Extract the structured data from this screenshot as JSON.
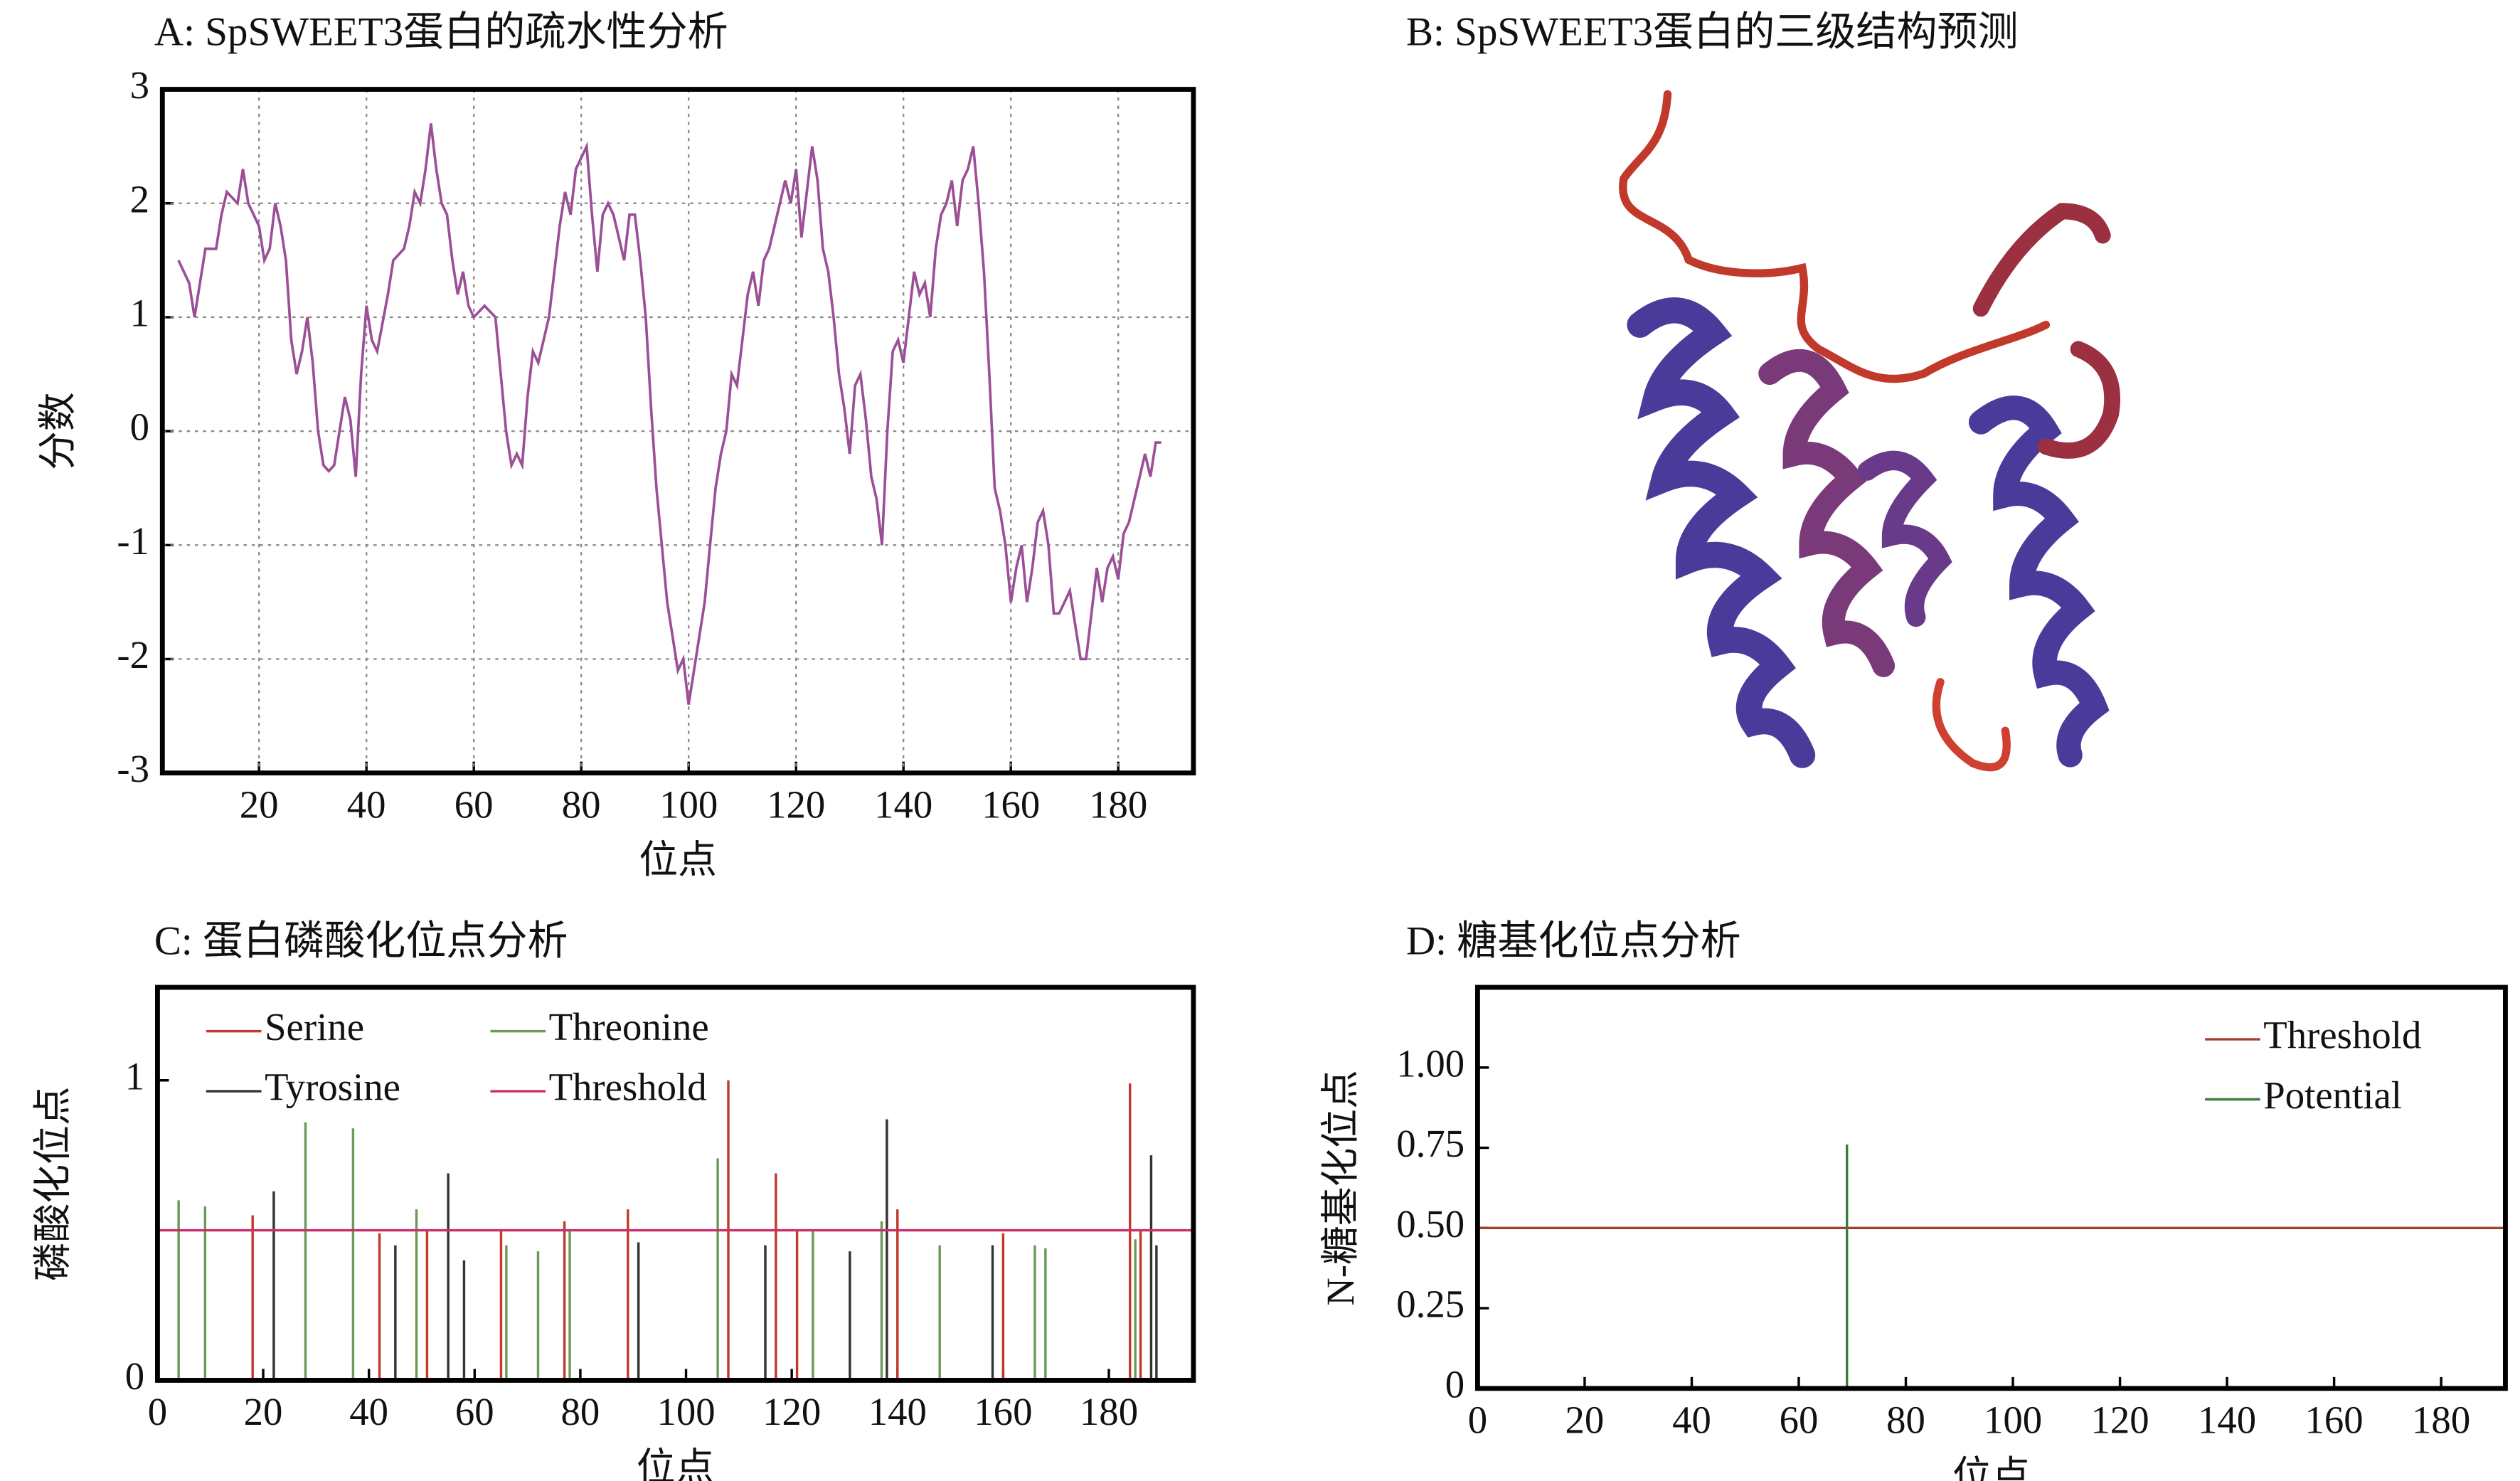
{
  "chart_data": [
    {
      "type": "line",
      "title": "A: SpSWEET3蛋白的疏水性分析",
      "xlabel": "位点",
      "ylabel": "分数",
      "color": "#9b4f96",
      "grid": true,
      "x": [
        5,
        7,
        8,
        10,
        12,
        13,
        14,
        16,
        17,
        18,
        19,
        20,
        21,
        22,
        23,
        24,
        25,
        26,
        27,
        28,
        29,
        30,
        31,
        32,
        33,
        34,
        35,
        36,
        37,
        38,
        39,
        40,
        41,
        42,
        44,
        45,
        47,
        48,
        49,
        50,
        51,
        52,
        53,
        54,
        55,
        56,
        57,
        58,
        59,
        60,
        62,
        64,
        65,
        66,
        67,
        68,
        69,
        70,
        71,
        72,
        74,
        75,
        76,
        77,
        78,
        79,
        80,
        81,
        82,
        83,
        84,
        85,
        86,
        87,
        88,
        89,
        90,
        91,
        92,
        93,
        94,
        95,
        96,
        97,
        98,
        99,
        100,
        101,
        102,
        103,
        104,
        105,
        106,
        107,
        108,
        109,
        110,
        111,
        112,
        113,
        114,
        115,
        116,
        117,
        118,
        119,
        120,
        121,
        122,
        123,
        124,
        125,
        126,
        127,
        128,
        129,
        130,
        131,
        132,
        133,
        134,
        135,
        136,
        137,
        138,
        139,
        140,
        141,
        142,
        143,
        144,
        145,
        146,
        147,
        148,
        149,
        150,
        151,
        152,
        153,
        154,
        155,
        156,
        157,
        158,
        159,
        160,
        161,
        162,
        163,
        164,
        165,
        166,
        167,
        168,
        169,
        170,
        171,
        172,
        173,
        174,
        175,
        176,
        177,
        178,
        179,
        180,
        181,
        182,
        183,
        184,
        185,
        186,
        187,
        188
      ],
      "values": [
        1.5,
        1.3,
        1.0,
        1.6,
        1.6,
        1.9,
        2.1,
        2.0,
        2.3,
        2.0,
        1.9,
        1.8,
        1.5,
        1.6,
        2.0,
        1.8,
        1.5,
        0.8,
        0.5,
        0.7,
        1.0,
        0.6,
        0.0,
        -0.3,
        -0.35,
        -0.3,
        0.0,
        0.3,
        0.1,
        -0.4,
        0.5,
        1.1,
        0.8,
        0.7,
        1.2,
        1.5,
        1.6,
        1.8,
        2.1,
        2.0,
        2.3,
        2.7,
        2.3,
        2.0,
        1.9,
        1.5,
        1.2,
        1.4,
        1.1,
        1.0,
        1.1,
        1.0,
        0.5,
        0.0,
        -0.3,
        -0.2,
        -0.3,
        0.3,
        0.7,
        0.6,
        1.0,
        1.4,
        1.8,
        2.1,
        1.9,
        2.3,
        2.4,
        2.5,
        1.9,
        1.4,
        1.9,
        2.0,
        1.9,
        1.7,
        1.5,
        1.9,
        1.9,
        1.5,
        1.0,
        0.2,
        -0.5,
        -1.0,
        -1.5,
        -1.8,
        -2.1,
        -2.0,
        -2.4,
        -2.1,
        -1.8,
        -1.5,
        -1.0,
        -0.5,
        -0.2,
        0.0,
        0.5,
        0.4,
        0.8,
        1.2,
        1.4,
        1.1,
        1.5,
        1.6,
        1.8,
        2.0,
        2.2,
        2.0,
        2.3,
        1.7,
        2.1,
        2.5,
        2.2,
        1.6,
        1.4,
        1.0,
        0.5,
        0.2,
        -0.2,
        0.4,
        0.5,
        0.1,
        -0.4,
        -0.6,
        -1.0,
        0.0,
        0.7,
        0.8,
        0.6,
        1.0,
        1.4,
        1.2,
        1.3,
        1.0,
        1.6,
        1.9,
        2.0,
        2.2,
        1.8,
        2.2,
        2.3,
        2.5,
        2.0,
        1.4,
        0.5,
        -0.5,
        -0.7,
        -1.0,
        -1.5,
        -1.2,
        -1.0,
        -1.5,
        -1.2,
        -0.8,
        -0.7,
        -1.0,
        -1.6,
        -1.6,
        -1.5,
        -1.4,
        -1.7,
        -2.0,
        -2.0,
        -1.6,
        -1.2,
        -1.5,
        -1.2,
        -1.1,
        -1.3,
        -0.9,
        -0.8,
        -0.6,
        -0.4,
        -0.2,
        -0.4,
        -0.1,
        -0.1
      ],
      "xlim": [
        2,
        194
      ],
      "ylim": [
        -3,
        3
      ],
      "xticks": [
        20,
        40,
        60,
        80,
        100,
        120,
        140,
        160,
        180
      ],
      "yticks": [
        -3,
        -2,
        -1,
        0,
        1,
        2,
        3
      ]
    },
    {
      "type": "stem",
      "title": "C: 蛋白磷酸化位点分析",
      "xlabel": "位点",
      "ylabel": "磷酸化位点",
      "legend": "upper left",
      "series": [
        {
          "name": "Serine",
          "color": "#c0392b",
          "x": [
            18,
            42,
            51,
            65,
            77,
            89,
            108,
            117,
            121,
            140,
            160,
            184,
            186
          ],
          "values": [
            0.55,
            0.49,
            0.5,
            0.5,
            0.53,
            0.57,
            1.0,
            0.69,
            0.5,
            0.57,
            0.49,
            0.99,
            0.5
          ]
        },
        {
          "name": "Threonine",
          "color": "#6a9a5a",
          "x": [
            4,
            9,
            28,
            37,
            49,
            66,
            72,
            78,
            106,
            124,
            137,
            148,
            166,
            168,
            185
          ],
          "values": [
            0.6,
            0.58,
            0.86,
            0.84,
            0.57,
            0.45,
            0.43,
            0.5,
            0.74,
            0.5,
            0.53,
            0.45,
            0.45,
            0.44,
            0.47
          ]
        },
        {
          "name": "Tyrosine",
          "color": "#333333",
          "x": [
            22,
            45,
            55,
            58,
            91,
            115,
            131,
            138,
            158,
            188,
            189
          ],
          "values": [
            0.63,
            0.45,
            0.69,
            0.4,
            0.46,
            0.45,
            0.43,
            0.87,
            0.45,
            0.75,
            0.45
          ]
        },
        {
          "name": "Threshold",
          "color": "#c8306e",
          "value": 0.5
        }
      ],
      "xlim": [
        0,
        196
      ],
      "ylim": [
        0,
        1.31
      ],
      "xticks": [
        0,
        20,
        40,
        60,
        80,
        100,
        120,
        140,
        160,
        180
      ],
      "yticks": [
        0,
        1
      ]
    },
    {
      "type": "stem",
      "title": "D: 糖基化位点分析",
      "xlabel": "位点",
      "ylabel": "N-糖基化位点",
      "legend": "upper right",
      "series": [
        {
          "name": "Threshold",
          "color": "#a0402d",
          "value": 0.5
        },
        {
          "name": "Potential",
          "color": "#3f7a3f",
          "x": [
            69
          ],
          "values": [
            0.76
          ]
        }
      ],
      "xlim": [
        0,
        192
      ],
      "ylim": [
        0,
        1.25
      ],
      "xticks": [
        0,
        20,
        40,
        60,
        80,
        100,
        120,
        140,
        160,
        180
      ],
      "yticks": [
        0,
        0.25,
        {
          "value": 0.5,
          "label": "0.50"
        },
        0.75,
        {
          "value": 1,
          "label": "1.00"
        }
      ]
    }
  ],
  "panel_b": {
    "title": "B: SpSWEET3蛋白的三级结构预测"
  }
}
